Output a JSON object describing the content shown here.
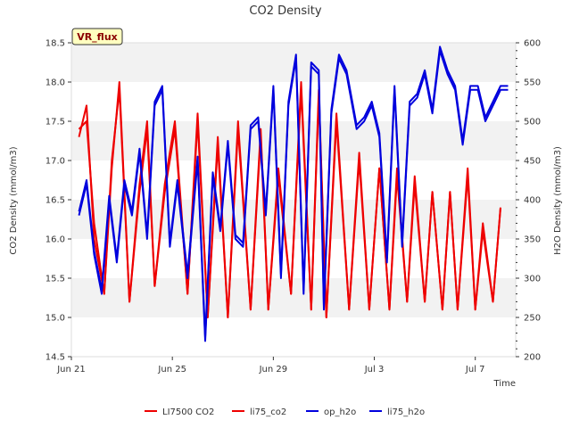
{
  "chart_data": {
    "type": "line",
    "title": "CO2 Density",
    "xlabel": "Time",
    "ylabel_left": "CO2 Density (mmol/m3)",
    "ylabel_right": "H2O Density (mmol/m3)",
    "badge": "VR_flux",
    "x_ticks": [
      "Jun 21",
      "Jun 25",
      "Jun 29",
      "Jul 3",
      "Jul 7"
    ],
    "y_left_ticks": [
      "14.5",
      "15.0",
      "15.5",
      "16.0",
      "16.5",
      "17.0",
      "17.5",
      "18.0",
      "18.5"
    ],
    "y_right_ticks": [
      "200",
      "250",
      "300",
      "350",
      "400",
      "450",
      "500",
      "550",
      "600"
    ],
    "ylim_left": [
      14.5,
      18.5
    ],
    "ylim_right": [
      200,
      600
    ],
    "xlim_days": [
      0,
      17.6
    ],
    "grid": "horizontal bands",
    "legend_position": "bottom",
    "colors": {
      "co2": "#ee0000",
      "h2o": "#0000dd",
      "band": "#f2f2f2"
    },
    "series": [
      {
        "name": "LI7500 CO2",
        "axis": "left",
        "color": "#ee0000",
        "x": [
          0.3,
          0.6,
          0.9,
          1.3,
          1.6,
          1.9,
          2.3,
          2.7,
          3.0,
          3.3,
          3.7,
          4.1,
          4.6,
          5.0,
          5.4,
          5.8,
          6.2,
          6.6,
          7.1,
          7.5,
          7.8,
          8.2,
          8.7,
          9.1,
          9.5,
          9.8,
          10.1,
          10.5,
          11.0,
          11.4,
          11.8,
          12.2,
          12.6,
          12.9,
          13.3,
          13.6,
          14.0,
          14.3,
          14.7,
          15.0,
          15.3,
          15.7,
          16.0,
          16.3,
          16.7,
          17.0
        ],
        "y": [
          17.4,
          17.5,
          16.2,
          15.3,
          16.9,
          18.0,
          15.2,
          16.7,
          17.5,
          15.4,
          16.6,
          17.4,
          15.3,
          17.6,
          15.0,
          17.3,
          15.0,
          17.5,
          15.1,
          17.4,
          15.1,
          16.9,
          15.3,
          18.0,
          15.1,
          17.9,
          15.0,
          17.6,
          15.1,
          17.1,
          15.1,
          16.9,
          15.1,
          16.9,
          15.2,
          16.8,
          15.2,
          16.6,
          15.1,
          16.6,
          15.1,
          16.9,
          15.1,
          16.2,
          15.2,
          16.4
        ]
      },
      {
        "name": "li75_co2",
        "axis": "left",
        "color": "#ee0000",
        "x": [
          0.3,
          0.6,
          0.9,
          1.3,
          1.6,
          1.9,
          2.3,
          2.7,
          3.0,
          3.3,
          3.7,
          4.1,
          4.6,
          5.0,
          5.4,
          5.8,
          6.2,
          6.6,
          7.1,
          7.5,
          7.8,
          8.2,
          8.7,
          9.1,
          9.5,
          9.8,
          10.1,
          10.5,
          11.0,
          11.4,
          11.8,
          12.2,
          12.6,
          12.9,
          13.3,
          13.6,
          14.0,
          14.3,
          14.7,
          15.0,
          15.3,
          15.7,
          16.0,
          16.3,
          16.7,
          17.0
        ],
        "y": [
          17.3,
          17.7,
          16.0,
          15.3,
          17.0,
          17.9,
          15.2,
          16.6,
          17.4,
          15.4,
          16.7,
          17.5,
          15.3,
          17.5,
          15.0,
          17.2,
          15.0,
          17.4,
          15.1,
          17.3,
          15.1,
          16.8,
          15.3,
          17.9,
          15.1,
          17.8,
          15.0,
          17.5,
          15.1,
          17.0,
          15.1,
          16.9,
          15.1,
          16.8,
          15.2,
          16.7,
          15.2,
          16.6,
          15.1,
          16.6,
          15.1,
          16.8,
          15.1,
          16.1,
          15.2,
          16.4
        ]
      },
      {
        "name": "op_h2o",
        "axis": "right",
        "color": "#0000dd",
        "x": [
          0.3,
          0.6,
          0.9,
          1.2,
          1.5,
          1.8,
          2.1,
          2.4,
          2.7,
          3.0,
          3.3,
          3.6,
          3.9,
          4.2,
          4.6,
          5.0,
          5.3,
          5.6,
          5.9,
          6.2,
          6.5,
          6.8,
          7.1,
          7.4,
          7.7,
          8.0,
          8.3,
          8.6,
          8.9,
          9.2,
          9.5,
          9.8,
          10.0,
          10.3,
          10.6,
          10.9,
          11.3,
          11.6,
          11.9,
          12.2,
          12.5,
          12.8,
          13.1,
          13.4,
          13.7,
          14.0,
          14.3,
          14.6,
          14.9,
          15.2,
          15.5,
          15.8,
          16.1,
          16.4,
          16.7,
          17.0,
          17.3
        ],
        "y": [
          380,
          420,
          330,
          280,
          400,
          320,
          420,
          380,
          460,
          350,
          520,
          540,
          340,
          420,
          300,
          450,
          220,
          430,
          360,
          470,
          350,
          340,
          490,
          500,
          380,
          540,
          300,
          520,
          580,
          280,
          570,
          560,
          260,
          510,
          580,
          560,
          490,
          500,
          520,
          480,
          320,
          540,
          340,
          520,
          530,
          560,
          510,
          590,
          560,
          540,
          470,
          540,
          540,
          500,
          520,
          540,
          540
        ]
      },
      {
        "name": "li75_h2o",
        "axis": "right",
        "color": "#0000dd",
        "x": [
          0.3,
          0.6,
          0.9,
          1.2,
          1.5,
          1.8,
          2.1,
          2.4,
          2.7,
          3.0,
          3.3,
          3.6,
          3.9,
          4.2,
          4.6,
          5.0,
          5.3,
          5.6,
          5.9,
          6.2,
          6.5,
          6.8,
          7.1,
          7.4,
          7.7,
          8.0,
          8.3,
          8.6,
          8.9,
          9.2,
          9.5,
          9.8,
          10.0,
          10.3,
          10.6,
          10.9,
          11.3,
          11.6,
          11.9,
          12.2,
          12.5,
          12.8,
          13.1,
          13.4,
          13.7,
          14.0,
          14.3,
          14.6,
          14.9,
          15.2,
          15.5,
          15.8,
          16.1,
          16.4,
          16.7,
          17.0,
          17.3
        ],
        "y": [
          385,
          425,
          335,
          285,
          405,
          325,
          425,
          385,
          465,
          355,
          525,
          545,
          345,
          425,
          305,
          455,
          225,
          435,
          365,
          475,
          355,
          345,
          495,
          505,
          385,
          545,
          305,
          525,
          585,
          285,
          575,
          565,
          265,
          515,
          585,
          565,
          495,
          505,
          525,
          485,
          325,
          545,
          345,
          525,
          535,
          565,
          515,
          595,
          565,
          545,
          475,
          545,
          545,
          505,
          525,
          545,
          545
        ]
      }
    ]
  }
}
